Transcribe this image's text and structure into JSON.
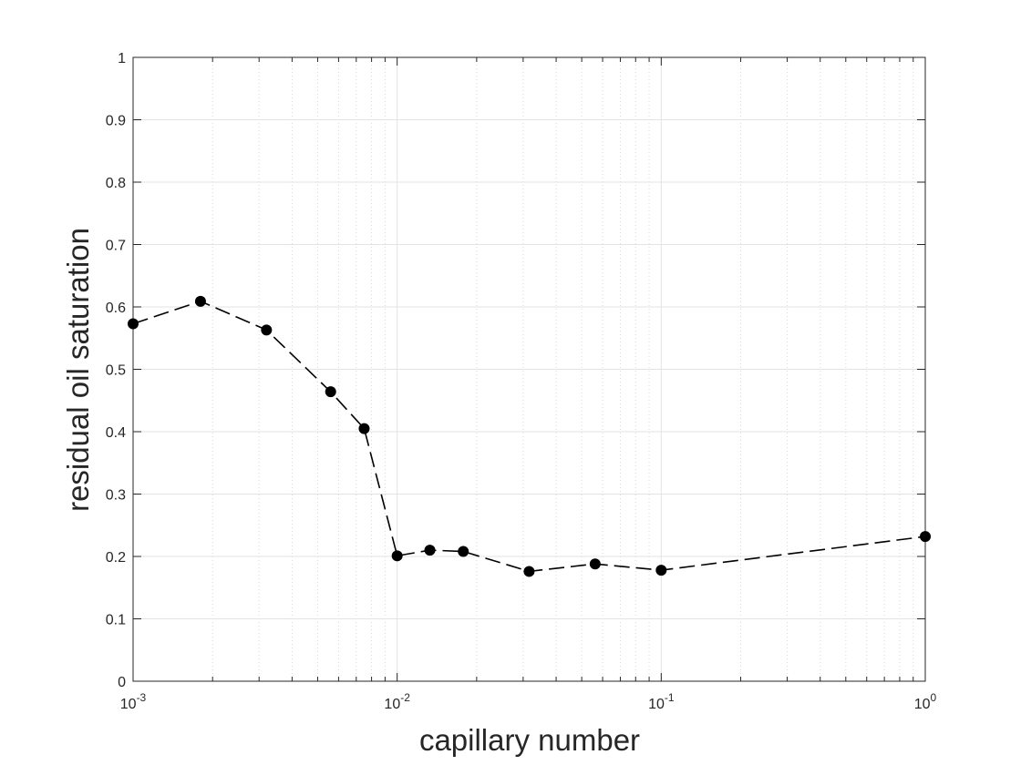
{
  "chart_data": {
    "type": "line",
    "title": "",
    "xlabel": "capillary number",
    "ylabel": "residual oil saturation",
    "xscale": "log",
    "xlim": [
      0.001,
      1
    ],
    "ylim": [
      0,
      1
    ],
    "grid": true,
    "minor_grid": true,
    "line_style": "dashed",
    "marker": "filled-circle",
    "line_color": "#000000",
    "x_ticks": [
      {
        "value": 0.001,
        "base": "10",
        "exp": "-3"
      },
      {
        "value": 0.01,
        "base": "10",
        "exp": "-2"
      },
      {
        "value": 0.1,
        "base": "10",
        "exp": "-1"
      },
      {
        "value": 1,
        "base": "10",
        "exp": "0"
      }
    ],
    "y_ticks": [
      "0",
      "0.1",
      "0.2",
      "0.3",
      "0.4",
      "0.5",
      "0.6",
      "0.7",
      "0.8",
      "0.9",
      "1"
    ],
    "series": [
      {
        "x": [
          0.001,
          0.0018,
          0.0032,
          0.0056,
          0.0075,
          0.01,
          0.0133,
          0.0178,
          0.0316,
          0.0562,
          0.1,
          1
        ],
        "y": [
          0.573,
          0.609,
          0.563,
          0.464,
          0.405,
          0.201,
          0.21,
          0.208,
          0.176,
          0.188,
          0.178,
          0.232
        ]
      }
    ]
  }
}
